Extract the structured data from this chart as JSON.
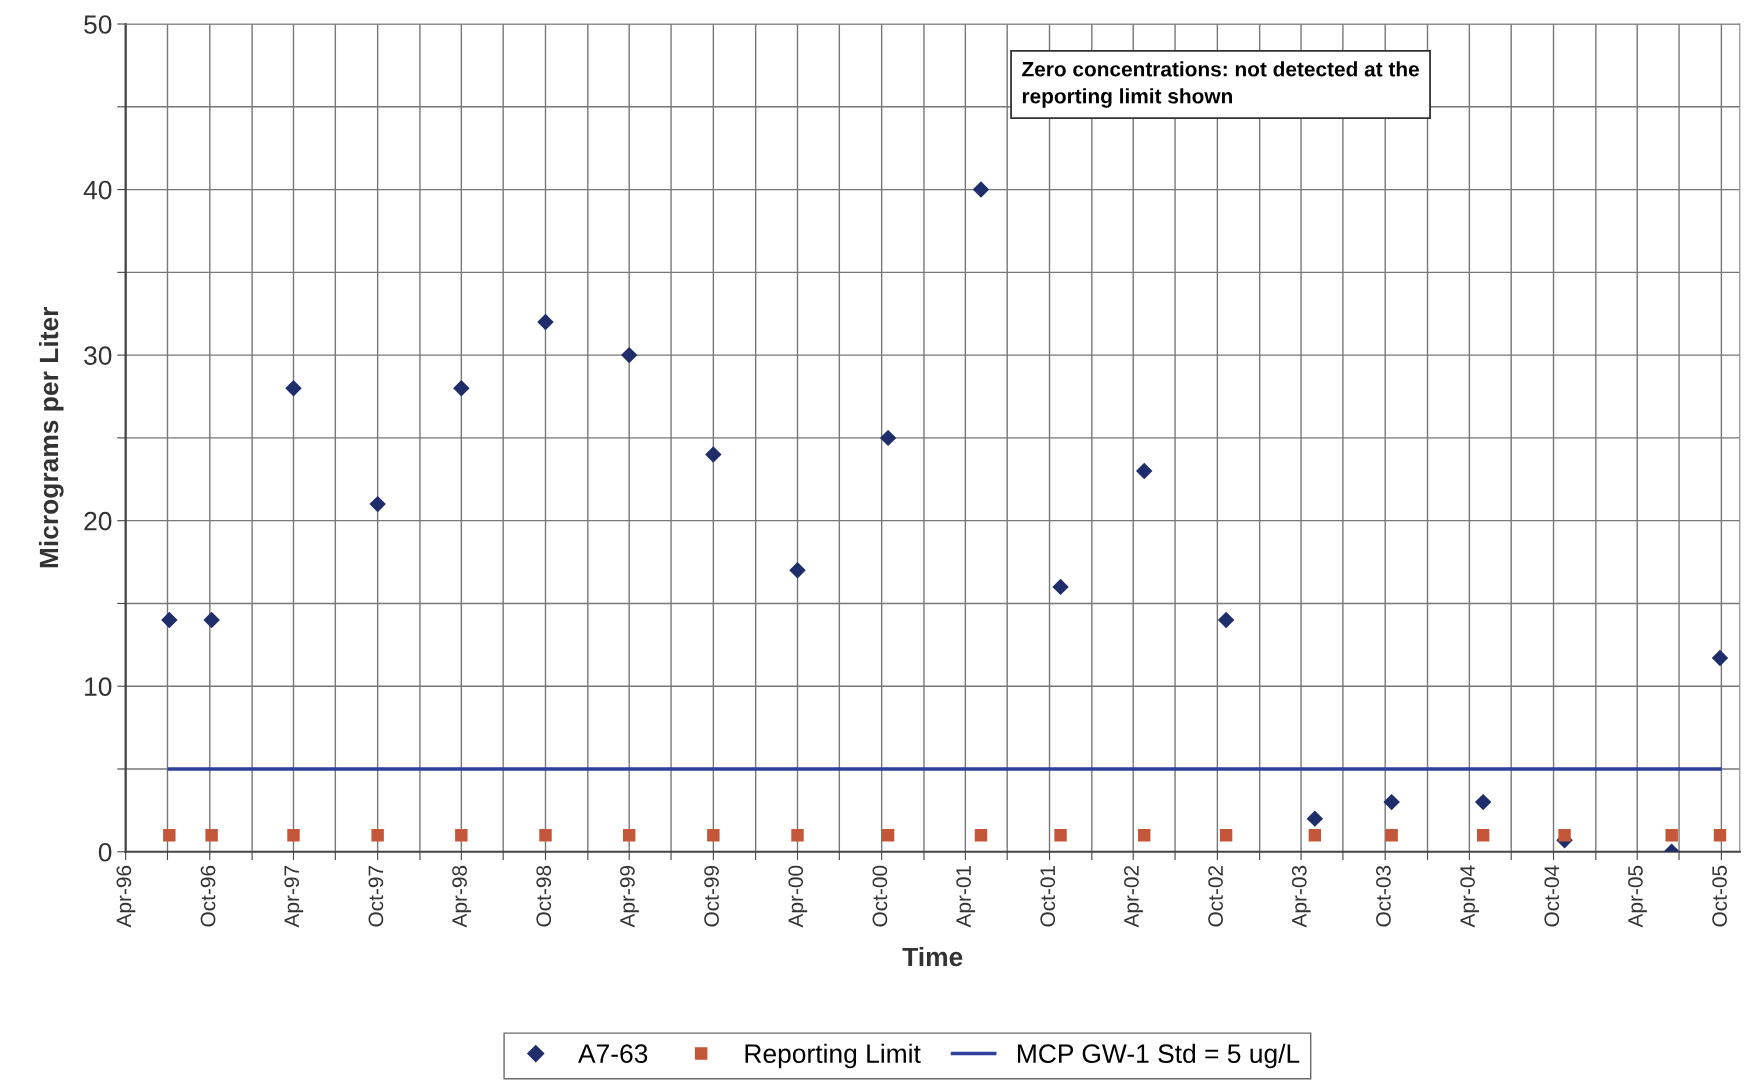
{
  "chart_data": {
    "type": "scatter",
    "xlabel": "Time",
    "ylabel": "Micrograms per Liter",
    "x": [
      "1996-07-05",
      "1996-10-05",
      "1997-04-01",
      "1997-10-01",
      "1998-04-01",
      "1998-10-01",
      "1999-04-01",
      "1999-10-01",
      "2000-04-01",
      "2000-10-15",
      "2001-05-05",
      "2001-10-25",
      "2002-04-25",
      "2002-10-20",
      "2003-05-01",
      "2003-10-15",
      "2004-05-01",
      "2004-10-25",
      "2005-06-15",
      "2005-09-28"
    ],
    "series": [
      {
        "name": "A7-63",
        "marker": "diamond",
        "color": "#1f2d6b",
        "values": [
          14,
          14,
          28,
          21,
          28,
          32,
          30,
          24,
          17,
          25,
          40,
          16,
          23,
          14,
          2,
          3,
          3,
          0.7,
          0,
          11.7
        ]
      },
      {
        "name": "Reporting Limit",
        "marker": "square",
        "color": "#c4563a",
        "values": [
          1,
          1,
          1,
          1,
          1,
          1,
          1,
          1,
          1,
          1,
          1,
          1,
          1,
          1,
          1,
          1,
          1,
          1,
          1,
          1
        ]
      },
      {
        "name": "MCP GW-1 Std = 5 ug/L",
        "type": "line",
        "marker": "none",
        "line_style": "solid",
        "color": "#2e3f9c",
        "x": [
          "1996-07-05",
          "2005-09-28"
        ],
        "values": [
          5,
          5
        ]
      }
    ],
    "xlim": [
      "1996-04-01",
      "2005-11-10"
    ],
    "xticks": [
      {
        "value": "1996-04-01",
        "label": "Apr-96"
      },
      {
        "value": "1996-07-01",
        "label": null
      },
      {
        "value": "1996-10-01",
        "label": "Oct-96"
      },
      {
        "value": "1997-01-01",
        "label": null
      },
      {
        "value": "1997-04-01",
        "label": "Apr-97"
      },
      {
        "value": "1997-07-01",
        "label": null
      },
      {
        "value": "1997-10-01",
        "label": "Oct-97"
      },
      {
        "value": "1998-01-01",
        "label": null
      },
      {
        "value": "1998-04-01",
        "label": "Apr-98"
      },
      {
        "value": "1998-07-01",
        "label": null
      },
      {
        "value": "1998-10-01",
        "label": "Oct-98"
      },
      {
        "value": "1999-01-01",
        "label": null
      },
      {
        "value": "1999-04-01",
        "label": "Apr-99"
      },
      {
        "value": "1999-07-01",
        "label": null
      },
      {
        "value": "1999-10-01",
        "label": "Oct-99"
      },
      {
        "value": "2000-01-01",
        "label": null
      },
      {
        "value": "2000-04-01",
        "label": "Apr-00"
      },
      {
        "value": "2000-07-01",
        "label": null
      },
      {
        "value": "2000-10-01",
        "label": "Oct-00"
      },
      {
        "value": "2001-01-01",
        "label": null
      },
      {
        "value": "2001-04-01",
        "label": "Apr-01"
      },
      {
        "value": "2001-07-01",
        "label": null
      },
      {
        "value": "2001-10-01",
        "label": "Oct-01"
      },
      {
        "value": "2002-01-01",
        "label": null
      },
      {
        "value": "2002-04-01",
        "label": "Apr-02"
      },
      {
        "value": "2002-07-01",
        "label": null
      },
      {
        "value": "2002-10-01",
        "label": "Oct-02"
      },
      {
        "value": "2003-01-01",
        "label": null
      },
      {
        "value": "2003-04-01",
        "label": "Apr-03"
      },
      {
        "value": "2003-07-01",
        "label": null
      },
      {
        "value": "2003-10-01",
        "label": "Oct-03"
      },
      {
        "value": "2004-01-01",
        "label": null
      },
      {
        "value": "2004-04-01",
        "label": "Apr-04"
      },
      {
        "value": "2004-07-01",
        "label": null
      },
      {
        "value": "2004-10-01",
        "label": "Oct-04"
      },
      {
        "value": "2005-01-01",
        "label": null
      },
      {
        "value": "2005-04-01",
        "label": "Apr-05"
      },
      {
        "value": "2005-07-01",
        "label": null
      },
      {
        "value": "2005-10-01",
        "label": "Oct-05"
      }
    ],
    "ylim": [
      0,
      50
    ],
    "yticks": [
      0,
      {
        "value": 5,
        "label": null
      },
      10,
      {
        "value": 15,
        "label": null
      },
      20,
      {
        "value": 25,
        "label": null
      },
      30,
      {
        "value": 35,
        "label": null
      },
      40,
      {
        "value": 45,
        "label": null
      },
      50
    ],
    "grid": true,
    "legend": "bottom",
    "annotations": [
      "Zero concentrations: not detected at the\nreporting limit shown"
    ]
  }
}
